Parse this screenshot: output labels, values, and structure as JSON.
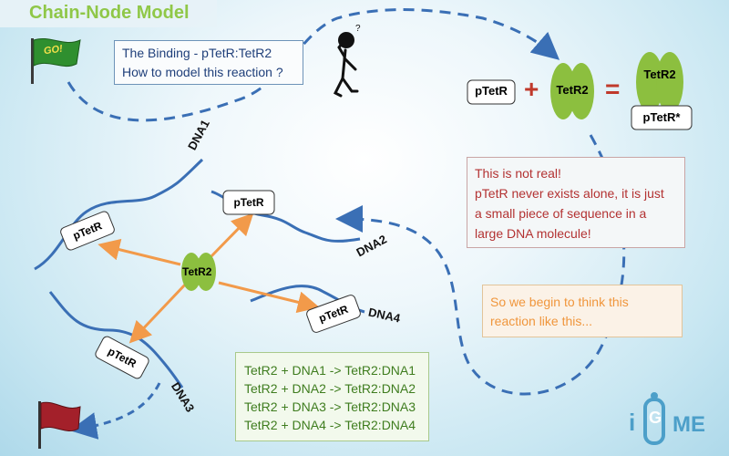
{
  "title": "Chain-Node Model",
  "go_flag_text": "GO!",
  "question": {
    "line1": "The Binding - pTetR:TetR2",
    "line2": "How to model this reaction ?"
  },
  "equation": {
    "left": "pTetR",
    "plus": "+",
    "middle": "TetR2",
    "equals": "=",
    "result_top": "TetR2",
    "result_bottom": "pTetR*"
  },
  "note": {
    "line1": "This is not real!",
    "line2": "pTetR never exists alone, it is just",
    "line3": "a small piece of sequence in a",
    "line4": "large DNA molecule!"
  },
  "begin": {
    "line1": "So we begin to think this",
    "line2": "reaction like this..."
  },
  "diagram": {
    "center": "TetR2",
    "nodes": [
      "pTetR",
      "pTetR",
      "pTetR",
      "pTetR"
    ],
    "dna_labels": [
      "DNA1",
      "DNA2",
      "DNA3",
      "DNA4"
    ]
  },
  "reactions": [
    "TetR2 + DNA1 -> TetR2:DNA1",
    "TetR2 + DNA2 -> TetR2:DNA2",
    "TetR2 + DNA3 -> TetR2:DNA3",
    "TetR2 + DNA4 -> TetR2:DNA4"
  ],
  "logo": {
    "text_i": "i",
    "text_g": "G",
    "text_ame": "ME"
  },
  "colors": {
    "title": "#8cc63f",
    "dna": "#3a6fb5",
    "arrow": "#f29a4a",
    "protein": "#8cbf3f",
    "note": "#b33232",
    "begin": "#f0963c",
    "reaction": "#3f7d1f"
  }
}
